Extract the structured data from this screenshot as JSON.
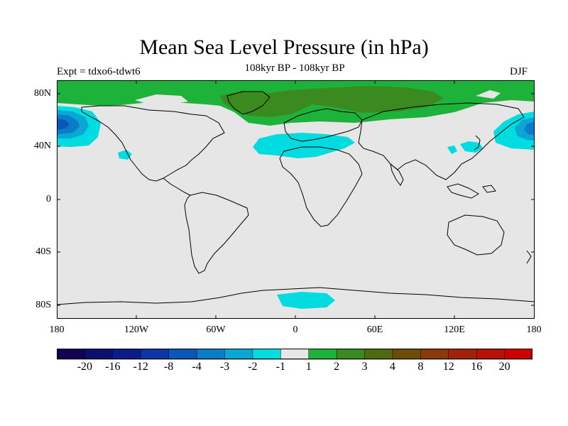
{
  "title": "Mean Sea Level Pressure (in hPa)",
  "subtitle": "108kyr BP - 108kyr BP",
  "experiment": "Expt = tdxo6-tdwt6",
  "season": "DJF",
  "axes": {
    "y_labels": [
      "80N",
      "40N",
      "0",
      "40S",
      "80S"
    ],
    "x_labels": [
      "180",
      "120W",
      "60W",
      "0",
      "60E",
      "120E",
      "180"
    ]
  },
  "colorbar": {
    "labels": [
      "-20",
      "-16",
      "-12",
      "-8",
      "-4",
      "-3",
      "-2",
      "-1",
      "1",
      "2",
      "3",
      "4",
      "8",
      "12",
      "16",
      "20"
    ],
    "colors": [
      "#140055",
      "#0b0f6e",
      "#0a1c8c",
      "#0a36a8",
      "#0a56b9",
      "#0b7cc8",
      "#0aa6d6",
      "#00dce0",
      "#e6e6e6",
      "#1db33b",
      "#3a8a1f",
      "#4f6a10",
      "#6d4c08",
      "#8a3a06",
      "#a32207",
      "#b81208",
      "#cc0000"
    ]
  },
  "map": {
    "background_color": "#e6e6e6",
    "land_outline_color": "#000000",
    "field_colors": {
      "light_green": "#1db33b",
      "dark_green": "#3a8a1f",
      "cyan": "#00dce0",
      "light_blue": "#0aa6d6",
      "mid_blue": "#0b7cc8",
      "dark_blue": "#0a56b9"
    }
  }
}
